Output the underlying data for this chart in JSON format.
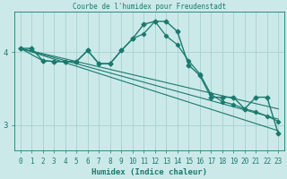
{
  "title": "Courbe de l'humidex pour Freudenstadt",
  "xlabel": "Humidex (Indice chaleur)",
  "bg_color": "#cce9e9",
  "grid_color": "#aad4d4",
  "line_color": "#1a7a6e",
  "xlim": [
    -0.5,
    23.5
  ],
  "ylim": [
    2.65,
    4.55
  ],
  "yticks": [
    3,
    4
  ],
  "xticks": [
    0,
    1,
    2,
    3,
    4,
    5,
    6,
    7,
    8,
    9,
    10,
    11,
    12,
    13,
    14,
    15,
    16,
    17,
    18,
    19,
    20,
    21,
    22,
    23
  ],
  "curve1_x": [
    0,
    1,
    2,
    3,
    4,
    5,
    6,
    7,
    8,
    9,
    10,
    11,
    12,
    13,
    14,
    15,
    16,
    17,
    18,
    19,
    20,
    21,
    22,
    23
  ],
  "curve1_y": [
    4.05,
    4.05,
    3.88,
    3.87,
    3.87,
    3.87,
    4.02,
    3.84,
    3.84,
    4.02,
    4.18,
    4.38,
    4.42,
    4.42,
    4.28,
    3.82,
    3.68,
    3.38,
    3.38,
    3.38,
    3.22,
    3.38,
    3.38,
    2.88
  ],
  "curve2_x": [
    0,
    2,
    3,
    4,
    5,
    6,
    7,
    8,
    9,
    10,
    11,
    12,
    13,
    14,
    15,
    16,
    17,
    18,
    19,
    20,
    21,
    22,
    23
  ],
  "curve2_y": [
    4.05,
    3.88,
    3.87,
    3.87,
    3.87,
    4.02,
    3.84,
    3.84,
    4.02,
    4.18,
    4.25,
    4.42,
    4.22,
    4.1,
    3.88,
    3.7,
    3.42,
    3.32,
    3.28,
    3.22,
    3.18,
    3.12,
    3.05
  ],
  "curve3_x": [
    0,
    23
  ],
  "curve3_y": [
    4.05,
    2.92
  ],
  "curve4_x": [
    0,
    23
  ],
  "curve4_y": [
    4.05,
    3.08
  ],
  "curve5_x": [
    0,
    23
  ],
  "curve5_y": [
    4.05,
    3.22
  ]
}
